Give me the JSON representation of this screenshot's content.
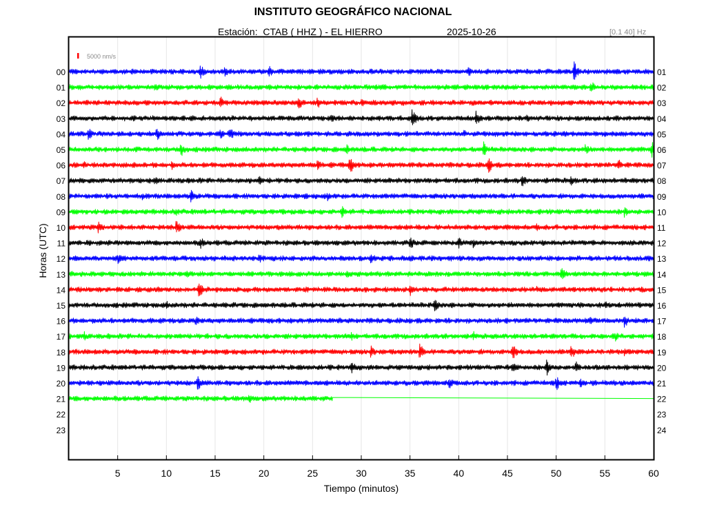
{
  "header": {
    "title": "INSTITUTO GEOGRÁFICO NACIONAL",
    "station": "Estación:  CTAB ( HHZ ) - EL HIERRO",
    "date": "2025-10-26",
    "band": "[0.1 40] Hz"
  },
  "chart_data": {
    "type": "line",
    "title": "INSTITUTO GEOGRÁFICO NACIONAL",
    "xlabel": "Tiempo (minutos)",
    "ylabel": "Horas (UTC)",
    "xlim": [
      0,
      60
    ],
    "x_ticks": [
      "5",
      "10",
      "15",
      "20",
      "25",
      "30",
      "35",
      "40",
      "45",
      "50",
      "55",
      "60"
    ],
    "left_hour_labels": [
      "00",
      "01",
      "02",
      "03",
      "04",
      "05",
      "06",
      "07",
      "08",
      "09",
      "10",
      "11",
      "12",
      "13",
      "14",
      "15",
      "16",
      "17",
      "18",
      "19",
      "20",
      "21",
      "22",
      "23"
    ],
    "right_hour_labels": [
      "01",
      "02",
      "03",
      "04",
      "05",
      "06",
      "07",
      "08",
      "09",
      "10",
      "11",
      "12",
      "13",
      "14",
      "15",
      "16",
      "17",
      "18",
      "19",
      "20",
      "21",
      "22",
      "23",
      "24"
    ],
    "scale_label": "5000 nm/s",
    "scale_color": "#ff0000",
    "grid": true,
    "series_colors": [
      "#0000ff",
      "#00ff00",
      "#ff0000",
      "#000000"
    ],
    "recorded_hours": 22,
    "last_trace_end_minute": 27.1,
    "trace_amplitude": 4,
    "events": [
      {
        "hour": 0,
        "minute": 13.5,
        "amp": 12
      },
      {
        "hour": 0,
        "minute": 16,
        "amp": 8
      },
      {
        "hour": 0,
        "minute": 20.5,
        "amp": 10
      },
      {
        "hour": 0,
        "minute": 41,
        "amp": 9
      },
      {
        "hour": 0,
        "minute": 51.8,
        "amp": 17
      },
      {
        "hour": 1,
        "minute": 8.8,
        "amp": 8
      },
      {
        "hour": 1,
        "minute": 32,
        "amp": 7
      },
      {
        "hour": 1,
        "minute": 53.5,
        "amp": 12
      },
      {
        "hour": 2,
        "minute": 15.5,
        "amp": 12
      },
      {
        "hour": 2,
        "minute": 23.5,
        "amp": 13
      },
      {
        "hour": 2,
        "minute": 25.5,
        "amp": 9
      },
      {
        "hour": 2,
        "minute": 30,
        "amp": 7
      },
      {
        "hour": 3,
        "minute": 27,
        "amp": 9
      },
      {
        "hour": 3,
        "minute": 35.2,
        "amp": 17
      },
      {
        "hour": 3,
        "minute": 41.8,
        "amp": 14
      },
      {
        "hour": 3,
        "minute": 47,
        "amp": 7
      },
      {
        "hour": 4,
        "minute": 2,
        "amp": 10
      },
      {
        "hour": 4,
        "minute": 9,
        "amp": 11
      },
      {
        "hour": 4,
        "minute": 15.5,
        "amp": 9
      },
      {
        "hour": 4,
        "minute": 16.5,
        "amp": 12
      },
      {
        "hour": 4,
        "minute": 40.5,
        "amp": 8
      },
      {
        "hour": 5,
        "minute": 11.5,
        "amp": 12
      },
      {
        "hour": 5,
        "minute": 28.5,
        "amp": 8
      },
      {
        "hour": 5,
        "minute": 42.5,
        "amp": 14
      },
      {
        "hour": 5,
        "minute": 53,
        "amp": 9
      },
      {
        "hour": 5,
        "minute": 59.8,
        "amp": 13
      },
      {
        "hour": 6,
        "minute": 1.5,
        "amp": 8
      },
      {
        "hour": 6,
        "minute": 10.5,
        "amp": 8
      },
      {
        "hour": 6,
        "minute": 25.5,
        "amp": 9
      },
      {
        "hour": 6,
        "minute": 28.8,
        "amp": 15
      },
      {
        "hour": 6,
        "minute": 43,
        "amp": 14
      },
      {
        "hour": 6,
        "minute": 56.3,
        "amp": 11
      },
      {
        "hour": 7,
        "minute": 8.8,
        "amp": 8
      },
      {
        "hour": 7,
        "minute": 19.5,
        "amp": 8
      },
      {
        "hour": 7,
        "minute": 46.5,
        "amp": 10
      },
      {
        "hour": 7,
        "minute": 51.5,
        "amp": 8
      },
      {
        "hour": 8,
        "minute": 7.5,
        "amp": 8
      },
      {
        "hour": 8,
        "minute": 12.5,
        "amp": 12
      },
      {
        "hour": 8,
        "minute": 26.5,
        "amp": 8
      },
      {
        "hour": 9,
        "minute": 11,
        "amp": 7
      },
      {
        "hour": 9,
        "minute": 28,
        "amp": 10
      },
      {
        "hour": 9,
        "minute": 57,
        "amp": 9
      },
      {
        "hour": 10,
        "minute": 3,
        "amp": 10
      },
      {
        "hour": 10,
        "minute": 11,
        "amp": 13
      },
      {
        "hour": 10,
        "minute": 48,
        "amp": 6
      },
      {
        "hour": 11,
        "minute": 13.5,
        "amp": 9
      },
      {
        "hour": 11,
        "minute": 35,
        "amp": 11
      },
      {
        "hour": 11,
        "minute": 40,
        "amp": 9
      },
      {
        "hour": 11,
        "minute": 41.5,
        "amp": 8
      },
      {
        "hour": 12,
        "minute": 5,
        "amp": 10
      },
      {
        "hour": 12,
        "minute": 19.5,
        "amp": 9
      },
      {
        "hour": 12,
        "minute": 31,
        "amp": 10
      },
      {
        "hour": 12,
        "minute": 56,
        "amp": 7
      },
      {
        "hour": 13,
        "minute": 12,
        "amp": 7
      },
      {
        "hour": 13,
        "minute": 28.5,
        "amp": 8
      },
      {
        "hour": 13,
        "minute": 50.5,
        "amp": 11
      },
      {
        "hour": 14,
        "minute": 13.3,
        "amp": 14
      },
      {
        "hour": 14,
        "minute": 35,
        "amp": 11
      },
      {
        "hour": 14,
        "minute": 48,
        "amp": 6
      },
      {
        "hour": 15,
        "minute": 10,
        "amp": 7
      },
      {
        "hour": 15,
        "minute": 37.5,
        "amp": 11
      },
      {
        "hour": 15,
        "minute": 55,
        "amp": 7
      },
      {
        "hour": 16,
        "minute": 13,
        "amp": 8
      },
      {
        "hour": 16,
        "minute": 53.5,
        "amp": 8
      },
      {
        "hour": 16,
        "minute": 57,
        "amp": 11
      },
      {
        "hour": 17,
        "minute": 1.5,
        "amp": 9
      },
      {
        "hour": 17,
        "minute": 29,
        "amp": 7
      },
      {
        "hour": 17,
        "minute": 41.5,
        "amp": 8
      },
      {
        "hour": 17,
        "minute": 56,
        "amp": 9
      },
      {
        "hour": 18,
        "minute": 31,
        "amp": 11
      },
      {
        "hour": 18,
        "minute": 36,
        "amp": 13
      },
      {
        "hour": 18,
        "minute": 45.5,
        "amp": 14
      },
      {
        "hour": 18,
        "minute": 51.5,
        "amp": 13
      },
      {
        "hour": 18,
        "minute": 57,
        "amp": 9
      },
      {
        "hour": 19,
        "minute": 29,
        "amp": 10
      },
      {
        "hour": 19,
        "minute": 45.5,
        "amp": 9
      },
      {
        "hour": 19,
        "minute": 49,
        "amp": 14
      },
      {
        "hour": 19,
        "minute": 52,
        "amp": 10
      },
      {
        "hour": 20,
        "minute": 13.2,
        "amp": 12
      },
      {
        "hour": 20,
        "minute": 39,
        "amp": 10
      },
      {
        "hour": 20,
        "minute": 50,
        "amp": 12
      },
      {
        "hour": 20,
        "minute": 52.5,
        "amp": 9
      },
      {
        "hour": 21,
        "minute": 18.5,
        "amp": 8
      },
      {
        "hour": 21,
        "minute": 24,
        "amp": 7
      }
    ]
  }
}
